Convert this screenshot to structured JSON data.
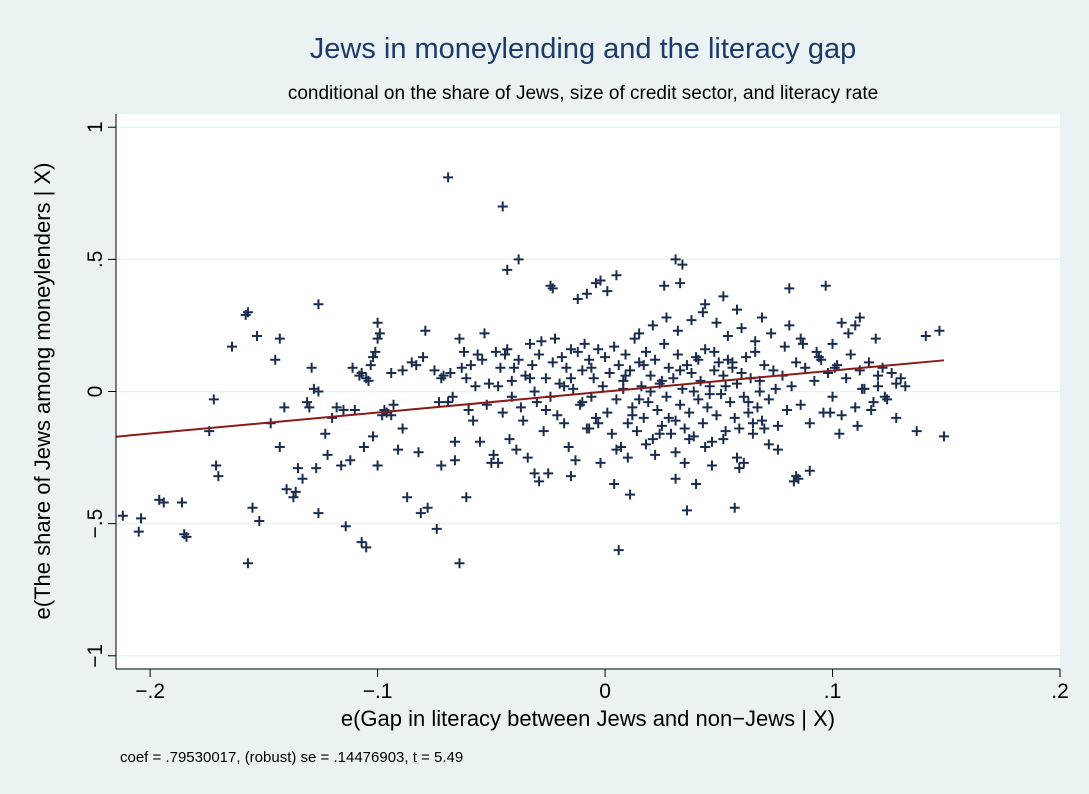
{
  "chart_data": {
    "type": "scatter",
    "title": "Jews in moneylending and the literacy gap",
    "subtitle": "conditional on the share of Jews, size of credit sector, and literacy rate",
    "xlabel": "e(Gap in literacy between Jews and non−Jews | X)",
    "ylabel": "e(The share of Jews among moneylenders | X)",
    "note": "coef = .79530017, (robust) se = .14476903, t = 5.49",
    "xlim": [
      -0.215,
      0.2
    ],
    "ylim": [
      -1.05,
      1.05
    ],
    "x_ticks": [
      {
        "value": -0.2,
        "label": "−.2"
      },
      {
        "value": -0.1,
        "label": "−.1"
      },
      {
        "value": 0,
        "label": "0"
      },
      {
        "value": 0.1,
        "label": ".1"
      },
      {
        "value": 0.2,
        "label": ".2"
      }
    ],
    "y_ticks": [
      {
        "value": -1,
        "label": "−1"
      },
      {
        "value": -0.5,
        "label": "−.5"
      },
      {
        "value": 0,
        "label": "0"
      },
      {
        "value": 0.5,
        "label": ".5"
      },
      {
        "value": 1,
        "label": "1"
      }
    ],
    "grid": true,
    "fit_line": {
      "x": [
        -0.215,
        0.149
      ],
      "y": [
        -0.171,
        0.118
      ],
      "color": "#8b1a1a"
    },
    "marker": {
      "shape": "plus",
      "color": "#1a2c4e"
    },
    "points": [
      [
        -0.212,
        -0.47
      ],
      [
        -0.204,
        -0.48
      ],
      [
        -0.205,
        -0.53
      ],
      [
        -0.196,
        -0.41
      ],
      [
        -0.194,
        -0.42
      ],
      [
        -0.186,
        -0.42
      ],
      [
        -0.185,
        -0.54
      ],
      [
        -0.184,
        -0.55
      ],
      [
        -0.172,
        -0.03
      ],
      [
        -0.174,
        -0.15
      ],
      [
        -0.171,
        -0.28
      ],
      [
        -0.17,
        -0.32
      ],
      [
        -0.164,
        0.17
      ],
      [
        -0.158,
        0.29
      ],
      [
        -0.157,
        0.3
      ],
      [
        -0.155,
        -0.44
      ],
      [
        -0.153,
        0.21
      ],
      [
        -0.152,
        -0.49
      ],
      [
        -0.157,
        -0.65
      ],
      [
        -0.147,
        -0.12
      ],
      [
        -0.145,
        0.12
      ],
      [
        -0.143,
        0.2
      ],
      [
        -0.143,
        -0.21
      ],
      [
        -0.141,
        -0.06
      ],
      [
        -0.14,
        -0.37
      ],
      [
        -0.137,
        -0.4
      ],
      [
        -0.136,
        -0.38
      ],
      [
        -0.135,
        -0.29
      ],
      [
        -0.133,
        -0.33
      ],
      [
        -0.131,
        -0.04
      ],
      [
        -0.13,
        -0.06
      ],
      [
        -0.129,
        0.09
      ],
      [
        -0.128,
        0.01
      ],
      [
        -0.127,
        -0.29
      ],
      [
        -0.126,
        0.0
      ],
      [
        -0.126,
        0.33
      ],
      [
        -0.126,
        -0.46
      ],
      [
        -0.122,
        -0.24
      ],
      [
        -0.118,
        -0.06
      ],
      [
        -0.116,
        -0.28
      ],
      [
        -0.114,
        -0.51
      ],
      [
        -0.112,
        -0.26
      ],
      [
        -0.111,
        0.09
      ],
      [
        -0.11,
        -0.07
      ],
      [
        -0.108,
        0.06
      ],
      [
        -0.107,
        0.07
      ],
      [
        -0.106,
        -0.21
      ],
      [
        -0.105,
        0.05
      ],
      [
        -0.104,
        0.04
      ],
      [
        -0.103,
        0.1
      ],
      [
        -0.102,
        0.13
      ],
      [
        -0.102,
        -0.17
      ],
      [
        -0.101,
        0.15
      ],
      [
        -0.1,
        0.2
      ],
      [
        -0.1,
        0.26
      ],
      [
        -0.099,
        0.22
      ],
      [
        -0.098,
        -0.09
      ],
      [
        -0.097,
        -0.07
      ],
      [
        -0.096,
        -0.08
      ],
      [
        -0.094,
        0.07
      ],
      [
        -0.094,
        -0.09
      ],
      [
        -0.107,
        -0.57
      ],
      [
        -0.105,
        -0.59
      ],
      [
        -0.093,
        -0.05
      ],
      [
        -0.091,
        -0.22
      ],
      [
        -0.089,
        0.08
      ],
      [
        -0.087,
        -0.4
      ],
      [
        -0.085,
        0.11
      ],
      [
        -0.083,
        0.1
      ],
      [
        -0.081,
        -0.46
      ],
      [
        -0.08,
        0.13
      ],
      [
        -0.079,
        0.23
      ],
      [
        -0.078,
        -0.44
      ],
      [
        -0.075,
        0.08
      ],
      [
        -0.074,
        -0.52
      ],
      [
        -0.073,
        -0.04
      ],
      [
        -0.072,
        0.05
      ],
      [
        -0.071,
        0.06
      ],
      [
        -0.069,
        -0.04
      ],
      [
        -0.068,
        0.07
      ],
      [
        -0.067,
        -0.02
      ],
      [
        -0.066,
        -0.19
      ],
      [
        -0.064,
        0.2
      ],
      [
        -0.063,
        0.09
      ],
      [
        -0.062,
        0.15
      ],
      [
        -0.061,
        0.05
      ],
      [
        -0.06,
        -0.07
      ],
      [
        -0.059,
        0.1
      ],
      [
        -0.058,
        -0.11
      ],
      [
        -0.057,
        0.02
      ],
      [
        -0.056,
        0.14
      ],
      [
        -0.055,
        -0.19
      ],
      [
        -0.054,
        0.12
      ],
      [
        -0.053,
        0.22
      ],
      [
        -0.052,
        -0.05
      ],
      [
        -0.051,
        0.03
      ],
      [
        -0.05,
        -0.27
      ],
      [
        -0.049,
        -0.24
      ],
      [
        -0.048,
        0.15
      ],
      [
        -0.047,
        0.02
      ],
      [
        -0.046,
        0.09
      ],
      [
        -0.045,
        -0.08
      ],
      [
        -0.044,
        0.14
      ],
      [
        -0.043,
        0.16
      ],
      [
        -0.042,
        -0.18
      ],
      [
        -0.041,
        0.04
      ],
      [
        -0.04,
        0.09
      ],
      [
        -0.039,
        -0.22
      ],
      [
        -0.038,
        0.12
      ],
      [
        -0.037,
        -0.06
      ],
      [
        -0.036,
        -0.11
      ],
      [
        -0.035,
        0.06
      ],
      [
        -0.034,
        -0.25
      ],
      [
        -0.033,
        0.18
      ],
      [
        -0.032,
        0.1
      ],
      [
        -0.031,
        0.0
      ],
      [
        -0.03,
        -0.04
      ],
      [
        -0.029,
        0.14
      ],
      [
        -0.028,
        0.19
      ],
      [
        -0.027,
        -0.15
      ],
      [
        -0.026,
        0.05
      ],
      [
        -0.025,
        -0.31
      ],
      [
        -0.024,
        -0.02
      ],
      [
        -0.023,
        0.11
      ],
      [
        -0.022,
        0.2
      ],
      [
        -0.021,
        -0.09
      ],
      [
        -0.02,
        0.03
      ],
      [
        -0.019,
        0.13
      ],
      [
        -0.018,
        -0.12
      ],
      [
        -0.017,
        0.09
      ],
      [
        -0.016,
        -0.21
      ],
      [
        -0.015,
        0.16
      ],
      [
        -0.014,
        0.01
      ],
      [
        -0.013,
        -0.26
      ],
      [
        -0.012,
        0.15
      ],
      [
        -0.011,
        -0.05
      ],
      [
        -0.01,
        0.08
      ],
      [
        -0.009,
        0.18
      ],
      [
        -0.008,
        -0.14
      ],
      [
        -0.007,
        0.12
      ],
      [
        -0.006,
        -0.02
      ],
      [
        -0.005,
        0.05
      ],
      [
        -0.004,
        -0.1
      ],
      [
        -0.003,
        0.16
      ],
      [
        -0.002,
        -0.27
      ],
      [
        -0.001,
        0.02
      ],
      [
        0.0,
        0.13
      ],
      [
        0.001,
        -0.08
      ],
      [
        0.002,
        0.07
      ],
      [
        0.003,
        -0.16
      ],
      [
        0.004,
        0.17
      ],
      [
        0.005,
        -0.03
      ],
      [
        0.006,
        0.1
      ],
      [
        0.007,
        -0.21
      ],
      [
        0.008,
        0.04
      ],
      [
        0.009,
        0.14
      ],
      [
        0.01,
        -0.12
      ],
      [
        0.011,
        0.08
      ],
      [
        0.012,
        -0.06
      ],
      [
        0.013,
        0.2
      ],
      [
        0.014,
        -0.15
      ],
      [
        0.015,
        0.11
      ],
      [
        0.016,
        0.02
      ],
      [
        0.017,
        -0.1
      ],
      [
        0.018,
        0.15
      ],
      [
        0.019,
        -0.04
      ],
      [
        0.02,
        0.06
      ],
      [
        0.021,
        -0.18
      ],
      [
        0.022,
        0.12
      ],
      [
        0.023,
        -0.07
      ],
      [
        0.024,
        0.03
      ],
      [
        0.025,
        -0.13
      ],
      [
        0.026,
        0.18
      ],
      [
        0.027,
        -0.02
      ],
      [
        0.028,
        0.09
      ],
      [
        0.029,
        -0.16
      ],
      [
        0.03,
        0.05
      ],
      [
        0.031,
        -0.11
      ],
      [
        0.032,
        0.14
      ],
      [
        0.033,
        -0.05
      ],
      [
        0.034,
        0.01
      ],
      [
        0.035,
        -0.14
      ],
      [
        0.036,
        0.1
      ],
      [
        0.037,
        -0.08
      ],
      [
        0.038,
        0.07
      ],
      [
        0.039,
        -0.17
      ],
      [
        0.04,
        0.13
      ],
      [
        0.041,
        -0.03
      ],
      [
        0.042,
        0.04
      ],
      [
        0.043,
        -0.12
      ],
      [
        0.044,
        0.16
      ],
      [
        0.045,
        -0.06
      ],
      [
        0.046,
        0.02
      ],
      [
        0.047,
        -0.19
      ],
      [
        0.048,
        0.08
      ],
      [
        0.049,
        -0.09
      ],
      [
        0.05,
        0.11
      ],
      [
        0.051,
        -0.01
      ],
      [
        0.052,
        0.06
      ],
      [
        0.053,
        -0.15
      ],
      [
        0.054,
        0.12
      ],
      [
        0.055,
        -0.04
      ],
      [
        0.056,
        0.09
      ],
      [
        0.057,
        -0.1
      ],
      [
        0.058,
        0.03
      ],
      [
        0.059,
        -0.14
      ],
      [
        0.06,
        0.07
      ],
      [
        0.061,
        -0.02
      ],
      [
        0.062,
        0.13
      ],
      [
        0.063,
        -0.08
      ],
      [
        0.064,
        0.05
      ],
      [
        0.065,
        -0.12
      ],
      [
        0.066,
        0.15
      ],
      [
        0.067,
        -0.06
      ],
      [
        0.068,
        0.04
      ],
      [
        0.069,
        -0.11
      ],
      [
        0.07,
        0.1
      ],
      [
        0.072,
        -0.03
      ],
      [
        0.074,
        0.08
      ],
      [
        0.076,
        -0.13
      ],
      [
        0.078,
        0.06
      ],
      [
        0.08,
        -0.07
      ],
      [
        0.082,
        0.02
      ],
      [
        0.084,
        0.11
      ],
      [
        0.086,
        -0.05
      ],
      [
        0.088,
        0.09
      ],
      [
        0.09,
        -0.12
      ],
      [
        0.092,
        0.04
      ],
      [
        0.094,
        0.13
      ],
      [
        0.096,
        -0.08
      ],
      [
        0.098,
        0.07
      ],
      [
        0.1,
        -0.02
      ],
      [
        0.102,
        0.1
      ],
      [
        0.104,
        -0.09
      ],
      [
        0.106,
        0.05
      ],
      [
        0.108,
        0.14
      ],
      [
        0.11,
        -0.06
      ],
      [
        0.112,
        0.08
      ],
      [
        0.114,
        0.01
      ],
      [
        0.116,
        0.11
      ],
      [
        0.118,
        -0.04
      ],
      [
        0.12,
        0.06
      ],
      [
        0.122,
        0.09
      ],
      [
        0.124,
        -0.03
      ],
      [
        0.126,
        0.07
      ],
      [
        0.128,
        0.03
      ],
      [
        0.13,
        0.05
      ],
      [
        0.132,
        0.02
      ],
      [
        -0.003,
        -0.12
      ],
      [
        0.005,
        -0.22
      ],
      [
        0.012,
        -0.09
      ],
      [
        0.018,
        -0.2
      ],
      [
        0.024,
        -0.16
      ],
      [
        0.031,
        -0.23
      ],
      [
        0.037,
        -0.18
      ],
      [
        0.044,
        -0.21
      ],
      [
        0.052,
        -0.18
      ],
      [
        0.058,
        -0.25
      ],
      [
        0.065,
        -0.16
      ],
      [
        0.072,
        -0.2
      ],
      [
        0.01,
        -0.25
      ],
      [
        0.022,
        -0.24
      ],
      [
        0.035,
        -0.27
      ],
      [
        0.047,
        -0.28
      ],
      [
        0.015,
        0.22
      ],
      [
        0.021,
        0.25
      ],
      [
        0.027,
        0.28
      ],
      [
        0.032,
        0.23
      ],
      [
        0.038,
        0.27
      ],
      [
        0.043,
        0.3
      ],
      [
        0.049,
        0.26
      ],
      [
        0.054,
        0.21
      ],
      [
        0.06,
        0.24
      ],
      [
        0.066,
        0.19
      ],
      [
        0.073,
        0.22
      ],
      [
        0.079,
        0.17
      ],
      [
        0.086,
        0.2
      ],
      [
        0.093,
        0.15
      ],
      [
        0.1,
        0.18
      ],
      [
        0.107,
        0.22
      ],
      [
        0.11,
        0.25
      ],
      [
        0.112,
        0.28
      ],
      [
        0.104,
        0.26
      ],
      [
        0.119,
        0.2
      ],
      [
        0.026,
        0.4
      ],
      [
        0.033,
        0.41
      ],
      [
        0.044,
        0.33
      ],
      [
        0.052,
        0.36
      ],
      [
        0.058,
        0.31
      ],
      [
        0.069,
        0.28
      ],
      [
        0.081,
        0.25
      ],
      [
        0.087,
        0.18
      ],
      [
        0.095,
        0.12
      ],
      [
        0.101,
        0.09
      ],
      [
        0.113,
        0.01
      ],
      [
        0.12,
        0.02
      ],
      [
        -0.024,
        0.4
      ],
      [
        -0.023,
        0.39
      ],
      [
        -0.012,
        0.35
      ],
      [
        -0.008,
        0.37
      ],
      [
        -0.004,
        0.41
      ],
      [
        -0.002,
        0.42
      ],
      [
        0.005,
        0.44
      ],
      [
        0.001,
        0.38
      ],
      [
        -0.043,
        0.46
      ],
      [
        -0.038,
        0.5
      ],
      [
        -0.069,
        0.81
      ],
      [
        -0.045,
        0.7
      ],
      [
        0.031,
        0.5
      ],
      [
        0.034,
        0.48
      ],
      [
        0.081,
        0.39
      ],
      [
        0.097,
        0.4
      ],
      [
        0.137,
        -0.15
      ],
      [
        0.141,
        0.21
      ],
      [
        0.147,
        0.23
      ],
      [
        0.149,
        -0.17
      ],
      [
        0.128,
        -0.1
      ],
      [
        0.123,
        -0.02
      ],
      [
        0.117,
        -0.07
      ],
      [
        0.085,
        -0.33
      ],
      [
        0.083,
        -0.34
      ],
      [
        0.084,
        -0.32
      ],
      [
        0.07,
        -0.14
      ],
      [
        0.076,
        -0.22
      ],
      [
        0.061,
        -0.27
      ],
      [
        0.059,
        -0.29
      ],
      [
        0.057,
        -0.44
      ],
      [
        0.04,
        -0.35
      ],
      [
        0.036,
        -0.45
      ],
      [
        0.031,
        -0.33
      ],
      [
        0.011,
        -0.39
      ],
      [
        0.004,
        -0.35
      ],
      [
        0.006,
        -0.6
      ],
      [
        -0.007,
        -0.14
      ],
      [
        -0.015,
        -0.32
      ],
      [
        -0.029,
        -0.34
      ],
      [
        -0.031,
        -0.31
      ],
      [
        -0.047,
        -0.27
      ],
      [
        -0.061,
        -0.4
      ],
      [
        -0.064,
        -0.65
      ],
      [
        -0.066,
        -0.26
      ],
      [
        -0.072,
        -0.28
      ],
      [
        -0.082,
        -0.23
      ],
      [
        -0.089,
        -0.14
      ],
      [
        -0.12,
        -0.1
      ],
      [
        -0.123,
        -0.16
      ],
      [
        -0.115,
        -0.07
      ],
      [
        -0.1,
        -0.28
      ],
      [
        0.09,
        -0.3
      ],
      [
        0.099,
        -0.08
      ],
      [
        0.103,
        -0.16
      ],
      [
        0.111,
        -0.13
      ],
      [
        0.025,
        0.04
      ],
      [
        0.028,
        -0.1
      ],
      [
        0.039,
        0.0
      ],
      [
        0.046,
        -0.01
      ],
      [
        0.053,
        0.02
      ],
      [
        0.02,
        0.0
      ],
      [
        0.015,
        -0.03
      ],
      [
        0.008,
        0.01
      ],
      [
        -0.01,
        -0.04
      ],
      [
        -0.018,
        0.02
      ],
      [
        -0.026,
        -0.07
      ],
      [
        -0.033,
        0.05
      ],
      [
        -0.041,
        -0.02
      ],
      [
        0.063,
        -0.04
      ],
      [
        0.068,
        0.0
      ],
      [
        0.075,
        0.01
      ],
      [
        0.033,
        0.08
      ],
      [
        0.041,
        0.12
      ],
      [
        0.048,
        0.15
      ],
      [
        0.056,
        0.11
      ],
      [
        0.017,
        0.1
      ],
      [
        0.009,
        0.06
      ],
      [
        -0.006,
        0.09
      ],
      [
        -0.015,
        0.05
      ]
    ]
  }
}
